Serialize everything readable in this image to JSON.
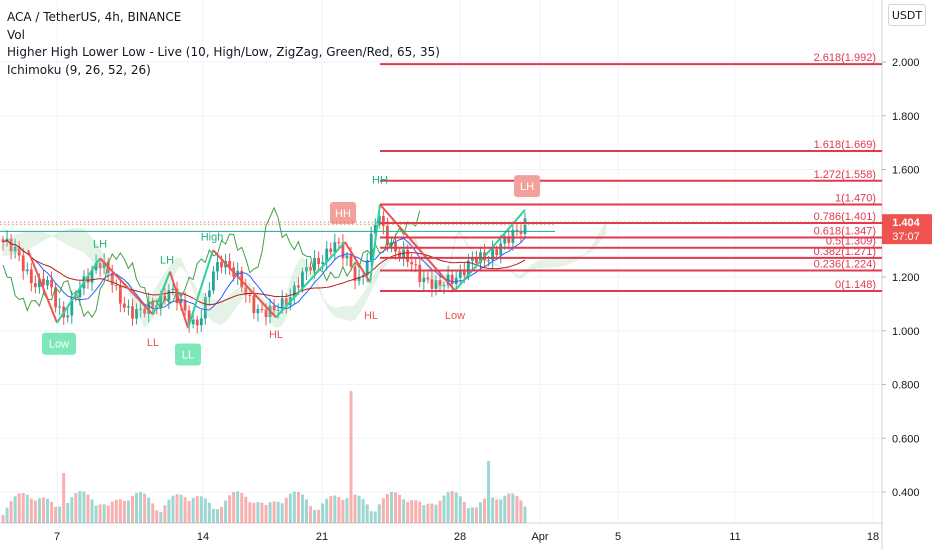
{
  "legend": {
    "symbol_line": "ACA / TetherUS, 4h, BINANCE",
    "volume": "Vol",
    "indicator_hhll": "Higher High Lower Low - Live (10, High/Low, ZigZag, Green/Red, 65, 35)",
    "indicator_ichimoku": "Ichimoku (9, 26, 52, 26)"
  },
  "scale_button": "USDT",
  "price_badge": {
    "price": "1.404",
    "countdown": "37:07"
  },
  "colors": {
    "up": "#26a69a",
    "down": "#ef5350",
    "fib": "#e03a4f",
    "hh_green": "#2fd19a",
    "tenkan": "#2962ff",
    "kijun": "#b71c1c",
    "lagging": "#43a047",
    "cloud_green": "#a5d6a7",
    "cloud_red": "#ef9a9a"
  },
  "chart_data": {
    "type": "candlestick",
    "ylim": [
      0.25,
      2.25
    ],
    "y_ticks": [
      "2.000",
      "1.800",
      "1.600",
      "1.400",
      "1.200",
      "1.000",
      "0.800",
      "0.600",
      "0.400"
    ],
    "x_ticks": [
      "7",
      "14",
      "21",
      "28",
      "Apr",
      "5",
      "11",
      "18"
    ],
    "close_path": [
      1.33,
      1.3,
      1.27,
      1.21,
      1.16,
      1.18,
      1.12,
      1.06,
      1.1,
      1.16,
      1.22,
      1.27,
      1.21,
      1.14,
      1.1,
      1.07,
      1.06,
      1.09,
      1.12,
      1.15,
      1.11,
      1.07,
      1.03,
      1.06,
      1.19,
      1.27,
      1.25,
      1.19,
      1.12,
      1.09,
      1.08,
      1.06,
      1.09,
      1.14,
      1.19,
      1.22,
      1.25,
      1.29,
      1.33,
      1.28,
      1.24,
      1.19,
      1.28,
      1.43,
      1.36,
      1.31,
      1.27,
      1.24,
      1.21,
      1.19,
      1.15,
      1.18,
      1.21,
      1.23,
      1.25,
      1.27,
      1.29,
      1.31,
      1.33,
      1.37,
      1.41
    ],
    "fib_levels": [
      {
        "label": "2.618(1.992)",
        "value": 1.992
      },
      {
        "label": "1.618(1.669)",
        "value": 1.669
      },
      {
        "label": "1.272(1.558)",
        "value": 1.558
      },
      {
        "label": "1(1.470)",
        "value": 1.47
      },
      {
        "label": "0.786(1.401)",
        "value": 1.401
      },
      {
        "label": "0.618(1.347)",
        "value": 1.347
      },
      {
        "label": "0.5(1.309)",
        "value": 1.309
      },
      {
        "label": "0.382(1.271)",
        "value": 1.271
      },
      {
        "label": "0.236(1.224)",
        "value": 1.224
      },
      {
        "label": "0(1.148)",
        "value": 1.148
      }
    ],
    "swing_labels": [
      {
        "text": "Low",
        "type": "box-green",
        "value": 1.03
      },
      {
        "text": "LH",
        "type": "green",
        "value": 1.28
      },
      {
        "text": "LL",
        "type": "red",
        "value": 1.01
      },
      {
        "text": "LH",
        "type": "green",
        "value": 1.22
      },
      {
        "text": "LL",
        "type": "box-green",
        "value": 0.99
      },
      {
        "text": "High",
        "type": "green",
        "value": 1.36
      },
      {
        "text": "HL",
        "type": "red",
        "value": 1.04
      },
      {
        "text": "HH",
        "type": "box-red",
        "value": 1.36
      },
      {
        "text": "HH",
        "type": "green",
        "value": 1.51
      },
      {
        "text": "HL",
        "type": "red",
        "value": 1.11
      },
      {
        "text": "Low",
        "type": "red",
        "value": 1.11
      },
      {
        "text": "LH",
        "type": "box-red",
        "value": 1.46
      }
    ]
  }
}
